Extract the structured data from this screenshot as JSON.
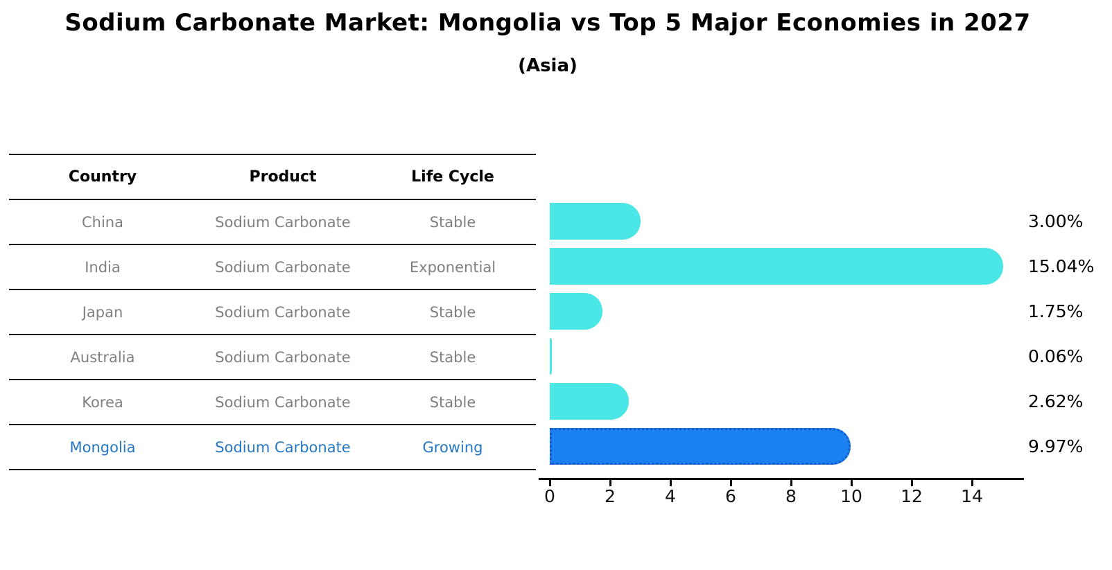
{
  "title": "Sodium Carbonate Market: Mongolia vs Top 5 Major Economies in 2027",
  "subtitle": "(Asia)",
  "table": {
    "headers": [
      "Country",
      "Product",
      "Life Cycle"
    ],
    "rows": [
      {
        "country": "China",
        "product": "Sodium Carbonate",
        "life_cycle": "Stable",
        "highlight": false
      },
      {
        "country": "India",
        "product": "Sodium Carbonate",
        "life_cycle": "Exponential",
        "highlight": false
      },
      {
        "country": "Japan",
        "product": "Sodium Carbonate",
        "life_cycle": "Stable",
        "highlight": false
      },
      {
        "country": "Australia",
        "product": "Sodium Carbonate",
        "life_cycle": "Stable",
        "highlight": false
      },
      {
        "country": "Korea",
        "product": "Sodium Carbonate",
        "life_cycle": "Stable",
        "highlight": false
      },
      {
        "country": "Mongolia",
        "product": "Sodium Carbonate",
        "life_cycle": "Growing",
        "highlight": true
      }
    ]
  },
  "chart_data": {
    "type": "bar",
    "orientation": "horizontal",
    "title": "Sodium Carbonate Market: Mongolia vs Top 5 Major Economies in 2027",
    "subtitle": "(Asia)",
    "categories": [
      "China",
      "India",
      "Japan",
      "Australia",
      "Korea",
      "Mongolia"
    ],
    "values": [
      3.0,
      15.04,
      1.75,
      0.06,
      2.62,
      9.97
    ],
    "value_labels": [
      "3.00%",
      "15.04%",
      "1.75%",
      "0.06%",
      "2.62%",
      "9.97%"
    ],
    "x_ticks": [
      "0",
      "2",
      "4",
      "6",
      "8",
      "10",
      "12",
      "14"
    ],
    "xlim": [
      0,
      15.8
    ],
    "grid": false,
    "legend": "none",
    "highlight_index": 5,
    "bar_color": "#4BE6E6",
    "highlight_bar_color": "#1B80F0",
    "highlight_border_color": "#1559C8",
    "highlight_text_color": "#2577C2"
  }
}
